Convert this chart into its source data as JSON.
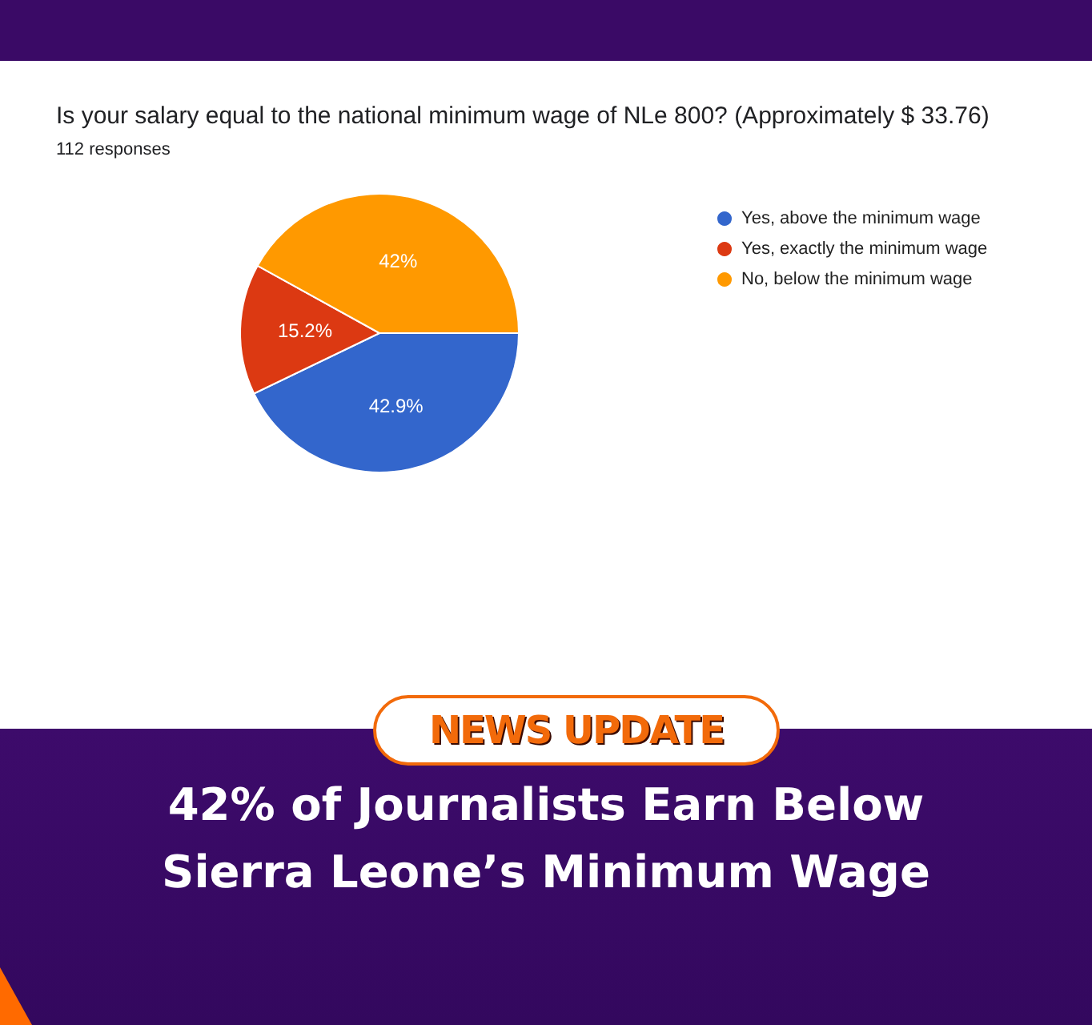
{
  "chart_data": {
    "type": "pie",
    "title": "Is your salary equal to the national minimum wage of NLe 800? (Approximately $ 33.76)",
    "subtitle": "112 responses",
    "categories": [
      "Yes, above the minimum wage",
      "Yes, exactly the minimum wage",
      "No, below the minimum wage"
    ],
    "values": [
      42.9,
      15.2,
      42
    ],
    "value_labels": [
      "42.9%",
      "15.2%",
      "42%"
    ],
    "colors": [
      "#3366cc",
      "#dc3912",
      "#ff9900"
    ],
    "legend": "right",
    "annotations": [
      "NEWS UPDATE",
      "42% of Journalists Earn Below Sierra Leone’s Minimum Wage"
    ]
  }
}
